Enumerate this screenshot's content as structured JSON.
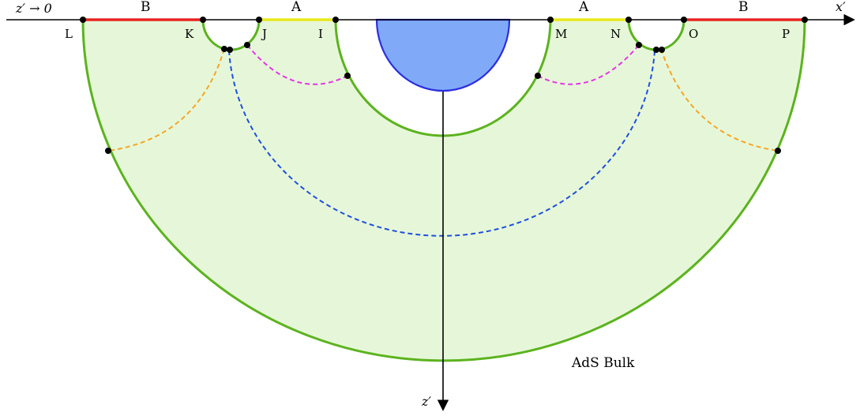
{
  "labels": {
    "top_left_limit": "z′ → 0",
    "x_axis": "x′",
    "z_axis": "z′",
    "bulk": "AdS Bulk",
    "region_A_left": "A",
    "region_A_right": "A",
    "region_B_left": "B",
    "region_B_right": "B"
  },
  "points": {
    "L": "L",
    "K": "K",
    "J": "J",
    "I": "I",
    "M": "M",
    "N": "N",
    "O": "O",
    "P": "P"
  },
  "colors": {
    "bulk_fill": "#e6f7d9",
    "rt_surface": "#5cb31e",
    "interval_B": "#e8231f",
    "interval_A": "#e8e81c",
    "horizon_fill": "#80aaf7",
    "horizon_stroke": "#2b2ee0",
    "geodesic_magenta": "#e633e6",
    "geodesic_orange": "#f5a623",
    "geodesic_blue": "#1f4fe0"
  }
}
